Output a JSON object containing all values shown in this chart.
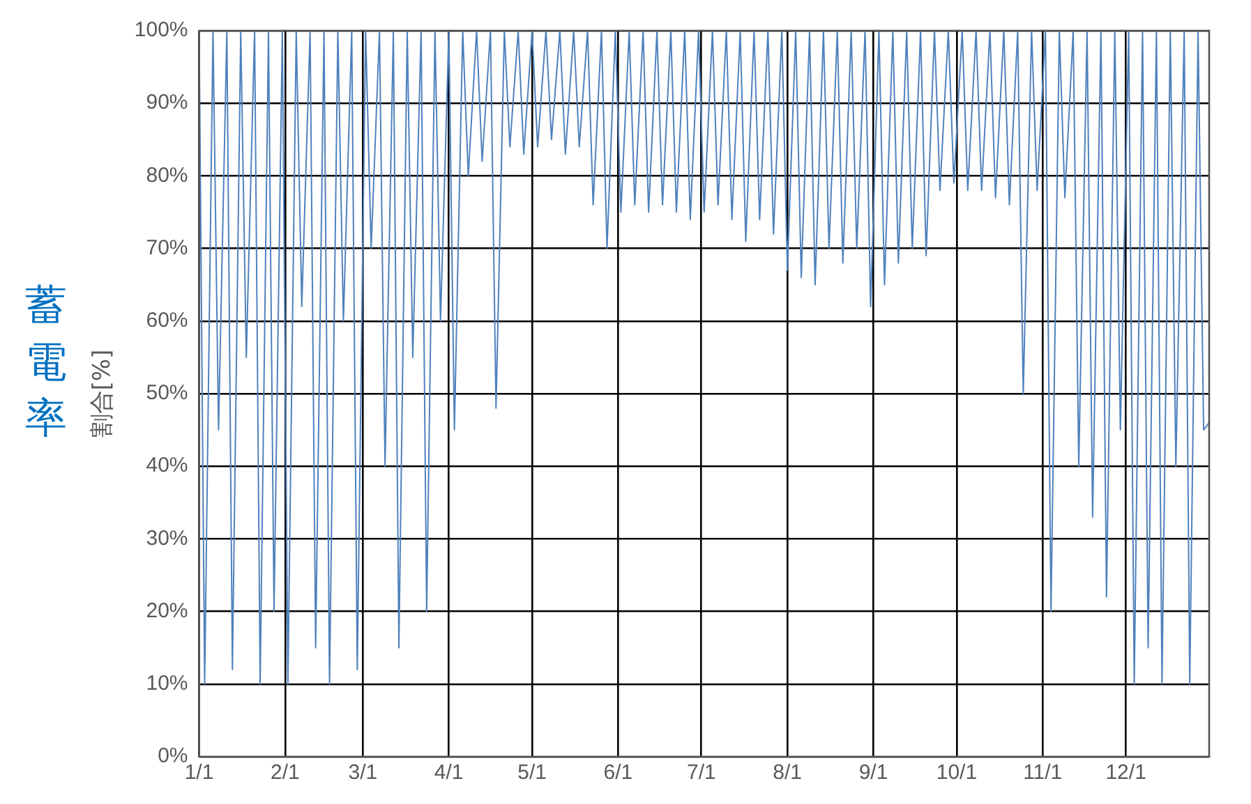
{
  "chart_data": {
    "type": "line",
    "title": "蓄電率",
    "ylabel": "割合[%]",
    "color": "#4f81bd",
    "x": [
      "--01-01",
      "--01-03",
      "--01-06",
      "--01-08",
      "--01-11",
      "--01-13",
      "--01-16",
      "--01-18",
      "--01-21",
      "--01-23",
      "--01-26",
      "--01-28",
      "--01-31",
      "--02-02",
      "--02-05",
      "--02-07",
      "--02-10",
      "--02-12",
      "--02-15",
      "--02-17",
      "--02-20",
      "--02-22",
      "--02-25",
      "--02-27",
      "--03-02",
      "--03-04",
      "--03-07",
      "--03-09",
      "--03-12",
      "--03-14",
      "--03-17",
      "--03-19",
      "--03-22",
      "--03-24",
      "--03-27",
      "--03-29",
      "--04-01",
      "--04-03",
      "--04-06",
      "--04-08",
      "--04-11",
      "--04-13",
      "--04-16",
      "--04-18",
      "--04-21",
      "--04-23",
      "--04-26",
      "--04-28",
      "--05-01",
      "--05-03",
      "--05-06",
      "--05-08",
      "--05-11",
      "--05-13",
      "--05-16",
      "--05-18",
      "--05-21",
      "--05-23",
      "--05-26",
      "--05-28",
      "--05-31",
      "--06-02",
      "--06-05",
      "--06-07",
      "--06-10",
      "--06-12",
      "--06-15",
      "--06-17",
      "--06-20",
      "--06-22",
      "--06-25",
      "--06-27",
      "--06-30",
      "--07-02",
      "--07-05",
      "--07-07",
      "--07-10",
      "--07-12",
      "--07-15",
      "--07-17",
      "--07-20",
      "--07-22",
      "--07-25",
      "--07-27",
      "--07-30",
      "--08-01",
      "--08-04",
      "--08-06",
      "--08-09",
      "--08-11",
      "--08-14",
      "--08-16",
      "--08-19",
      "--08-21",
      "--08-24",
      "--08-26",
      "--08-29",
      "--08-31",
      "--09-03",
      "--09-05",
      "--09-08",
      "--09-10",
      "--09-13",
      "--09-15",
      "--09-18",
      "--09-20",
      "--09-23",
      "--09-25",
      "--09-28",
      "--09-30",
      "--10-03",
      "--10-05",
      "--10-08",
      "--10-10",
      "--10-13",
      "--10-15",
      "--10-18",
      "--10-20",
      "--10-23",
      "--10-25",
      "--10-28",
      "--10-30",
      "--11-02",
      "--11-04",
      "--11-07",
      "--11-09",
      "--11-12",
      "--11-14",
      "--11-17",
      "--11-19",
      "--11-22",
      "--11-24",
      "--11-27",
      "--11-29",
      "--12-02",
      "--12-04",
      "--12-07",
      "--12-09",
      "--12-12",
      "--12-14",
      "--12-17",
      "--12-19",
      "--12-22",
      "--12-24",
      "--12-27",
      "--12-29",
      "--12-31"
    ],
    "values": [
      100,
      10,
      100,
      45,
      100,
      12,
      100,
      55,
      100,
      10,
      100,
      20,
      100,
      10,
      100,
      62,
      100,
      15,
      100,
      10,
      100,
      60,
      100,
      12,
      100,
      70,
      100,
      40,
      100,
      15,
      100,
      55,
      100,
      20,
      100,
      60,
      100,
      45,
      100,
      80,
      100,
      82,
      100,
      48,
      100,
      84,
      100,
      83,
      100,
      84,
      100,
      85,
      100,
      83,
      100,
      84,
      100,
      76,
      100,
      70,
      100,
      75,
      100,
      76,
      100,
      75,
      100,
      76,
      100,
      75,
      100,
      74,
      100,
      75,
      100,
      76,
      100,
      74,
      100,
      71,
      100,
      74,
      100,
      72,
      100,
      67,
      100,
      66,
      100,
      65,
      100,
      70,
      100,
      68,
      100,
      70,
      100,
      62,
      100,
      65,
      100,
      68,
      100,
      70,
      100,
      69,
      100,
      78,
      100,
      79,
      100,
      78,
      100,
      78,
      100,
      77,
      100,
      76,
      100,
      50,
      100,
      78,
      100,
      20,
      100,
      77,
      100,
      40,
      100,
      33,
      100,
      22,
      100,
      45,
      100,
      10,
      100,
      15,
      100,
      10,
      100,
      40,
      100,
      10,
      100,
      45,
      46
    ],
    "xlim": [
      "--01-01",
      "--12-31"
    ],
    "xticks": [
      {
        "value": "--01-01",
        "label": "1/1"
      },
      {
        "value": "--02-01",
        "label": "2/1"
      },
      {
        "value": "--03-01",
        "label": "3/1"
      },
      {
        "value": "--04-01",
        "label": "4/1"
      },
      {
        "value": "--05-01",
        "label": "5/1"
      },
      {
        "value": "--06-01",
        "label": "6/1"
      },
      {
        "value": "--07-01",
        "label": "7/1"
      },
      {
        "value": "--08-01",
        "label": "8/1"
      },
      {
        "value": "--09-01",
        "label": "9/1"
      },
      {
        "value": "--10-01",
        "label": "10/1"
      },
      {
        "value": "--11-01",
        "label": "11/1"
      },
      {
        "value": "--12-01",
        "label": "12/1"
      }
    ],
    "ylim": [
      0,
      100
    ],
    "yticks": [
      {
        "value": 0,
        "label": "0%"
      },
      {
        "value": 10,
        "label": "10%"
      },
      {
        "value": 20,
        "label": "20%"
      },
      {
        "value": 30,
        "label": "30%"
      },
      {
        "value": 40,
        "label": "40%"
      },
      {
        "value": 50,
        "label": "50%"
      },
      {
        "value": 60,
        "label": "60%"
      },
      {
        "value": 70,
        "label": "70%"
      },
      {
        "value": 80,
        "label": "80%"
      },
      {
        "value": 90,
        "label": "90%"
      },
      {
        "value": 100,
        "label": "100%"
      }
    ],
    "grid": true,
    "marker": "none"
  }
}
